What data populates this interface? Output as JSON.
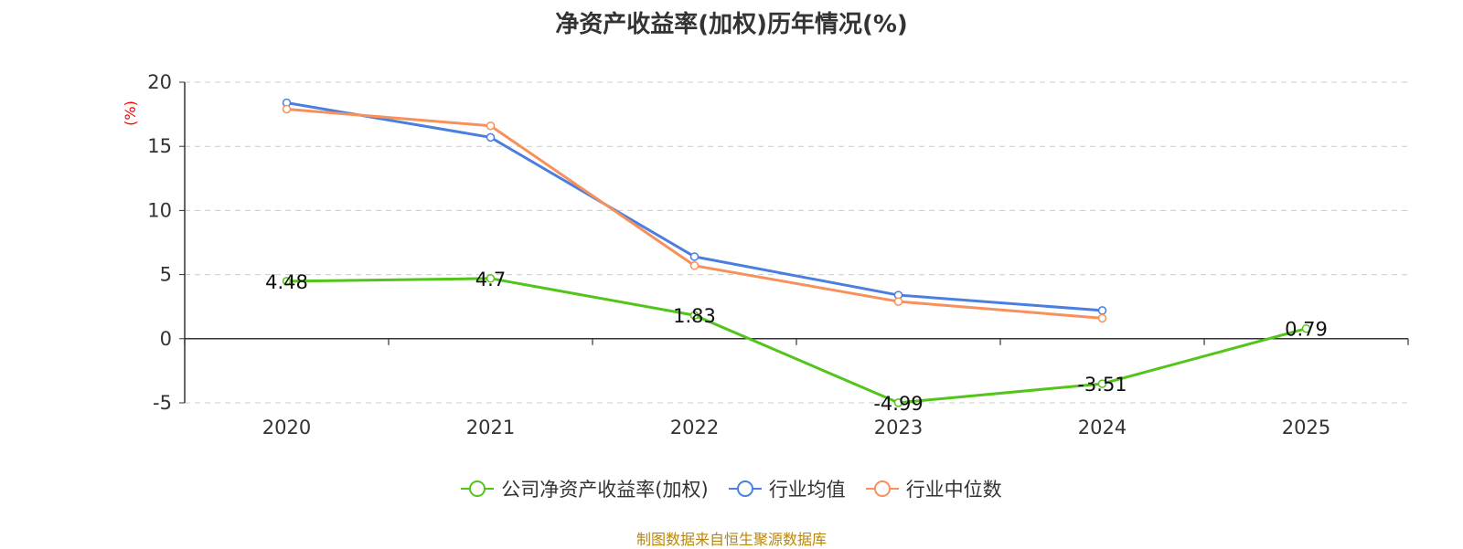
{
  "chart_data": {
    "type": "line",
    "title": "净资产收益率(加权)历年情况(%)",
    "ylabel": "(%)",
    "xlabel": "",
    "ylim": [
      -5,
      20
    ],
    "y_ticks": [
      20,
      15,
      10,
      5,
      0,
      -5
    ],
    "categories": [
      "2020",
      "2021",
      "2022",
      "2023",
      "2024",
      "2025"
    ],
    "grid": true,
    "legend_position": "bottom-center",
    "series": [
      {
        "name": "公司净资产收益率(加权)",
        "color": "#52c41a",
        "values": [
          4.48,
          4.7,
          1.83,
          -4.99,
          -3.51,
          0.79
        ],
        "labels": [
          "4.48",
          "4.7",
          "1.83",
          "-4.99",
          "-3.51",
          "0.79"
        ]
      },
      {
        "name": "行业均值",
        "color": "#4a7fe0",
        "values": [
          18.4,
          15.7,
          6.4,
          3.4,
          2.2,
          null
        ]
      },
      {
        "name": "行业中位数",
        "color": "#f7905a",
        "values": [
          17.9,
          16.6,
          5.7,
          2.9,
          1.6,
          null
        ]
      }
    ]
  },
  "source": "制图数据来自恒生聚源数据库",
  "colors": {
    "axis": "#333333",
    "grid": "#cccccc",
    "ylabel": "#ff0000",
    "source": "#b8860b"
  }
}
